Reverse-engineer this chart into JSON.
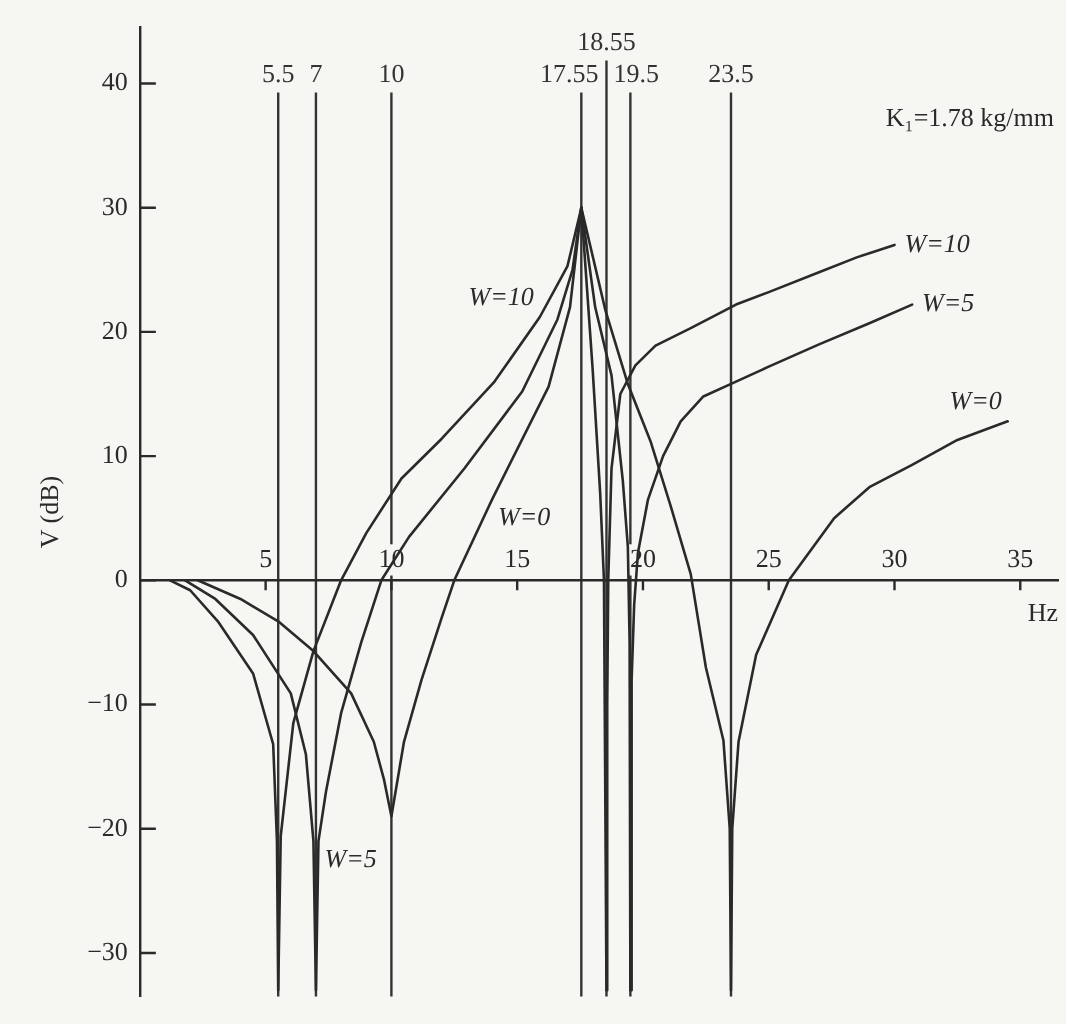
{
  "chart_data": {
    "type": "line",
    "xlabel": "Hz",
    "ylabel": "V (dB)",
    "annotations": [
      "K₁=1.78 kg/mm"
    ],
    "xlim": [
      0,
      36.5
    ],
    "xticks": [
      5,
      10,
      15,
      20,
      25,
      30,
      35
    ],
    "ylim": [
      -33.5,
      44.5
    ],
    "yticks": [
      {
        "value": -30,
        "label": "−30"
      },
      {
        "value": -20,
        "label": "−20"
      },
      {
        "value": -10,
        "label": "−10"
      },
      0,
      10,
      20,
      30,
      40
    ],
    "grid": false,
    "legend": false,
    "marker": "none",
    "line_style": "solid",
    "ref_lines": [
      {
        "axis": "x",
        "value": 5.5,
        "label": "5.5",
        "color": "#333333"
      },
      {
        "axis": "x",
        "value": 7,
        "label": "7",
        "color": "#333333"
      },
      {
        "axis": "x",
        "value": 10,
        "label": "10",
        "color": "#333333"
      },
      {
        "axis": "x",
        "value": 17.55,
        "label": "17.55",
        "color": "#333333"
      },
      {
        "axis": "x",
        "value": 18.55,
        "label": "18.55",
        "color": "#333333"
      },
      {
        "axis": "x",
        "value": 19.5,
        "label": "19.5",
        "color": "#333333"
      },
      {
        "axis": "x",
        "value": 23.5,
        "label": "23.5",
        "color": "#333333"
      }
    ],
    "series": [
      {
        "name": "W=10",
        "color": "#2a2a2a",
        "x": [
          1.2,
          2,
          3.1,
          4.5,
          5.3,
          5.45,
          5.5,
          5.6,
          6.1,
          6.9,
          8,
          9,
          10.4,
          12,
          14.1,
          15.9,
          17,
          17.55
        ],
        "values": [
          0,
          -0.8,
          -3.3,
          -7.5,
          -13.2,
          -21,
          -33,
          -20.6,
          -11.5,
          -5.7,
          0,
          3.8,
          8.2,
          11.4,
          16,
          21.2,
          25.3,
          30
        ]
      },
      {
        "name": "W=5",
        "color": "#2a2a2a",
        "x": [
          1.8,
          3,
          4.5,
          6,
          6.6,
          6.9,
          7,
          7.1,
          7.4,
          8,
          8.8,
          9.6,
          10.7,
          12.9,
          15.2,
          16.6,
          17.2,
          17.55
        ],
        "values": [
          0,
          -1.5,
          -4.4,
          -9.1,
          -14,
          -21,
          -33,
          -21,
          -17,
          -10.7,
          -5,
          0,
          3.5,
          9,
          15.2,
          21,
          25,
          30
        ]
      },
      {
        "name": "W=0",
        "color": "#2a2a2a",
        "x": [
          2.3,
          4,
          5.5,
          6.9,
          8.4,
          9.3,
          9.7,
          10,
          10.5,
          11.2,
          12,
          12.5,
          14,
          16.25,
          17.1,
          17.55
        ],
        "values": [
          0,
          -1.5,
          -3.3,
          -5.7,
          -9.1,
          -13,
          -16,
          -19,
          -13,
          -8,
          -3,
          0,
          6.5,
          15.6,
          22,
          30
        ]
      },
      {
        "name": "W=10",
        "color": "#2a2a2a",
        "x": [
          17.55,
          18,
          18.3,
          18.45,
          18.55,
          18.58,
          18.62,
          18.75,
          19.1,
          19.7,
          20.5,
          21.9,
          23.7,
          25,
          27,
          28.5,
          30
        ],
        "values": [
          30,
          17,
          7,
          0,
          -33,
          -10,
          0,
          9,
          15,
          17.3,
          18.9,
          20.3,
          22.2,
          23.2,
          24.8,
          26,
          27
        ]
      },
      {
        "name": "W=5",
        "color": "#2a2a2a",
        "x": [
          17.55,
          18.1,
          18.75,
          19.2,
          19.4,
          19.47,
          19.5,
          19.55,
          19.65,
          19.8,
          20.2,
          20.8,
          21.5,
          22.4,
          23.7,
          25,
          27,
          29,
          30.7
        ],
        "values": [
          30,
          22,
          16.5,
          8,
          2.7,
          -5,
          -33,
          -8,
          -2,
          2.2,
          6.5,
          10,
          12.8,
          14.8,
          16,
          17.2,
          19,
          20.7,
          22.2
        ]
      },
      {
        "name": "W=0",
        "color": "#2a2a2a",
        "x": [
          17.55,
          18.5,
          19.4,
          20.3,
          21.1,
          21.9,
          22.5,
          23.2,
          23.45,
          23.5,
          23.55,
          23.8,
          24.5,
          25.8,
          27.6,
          29,
          30.7,
          32.5,
          34.5
        ],
        "values": [
          30,
          21.8,
          15.8,
          11.2,
          6,
          0.5,
          -7,
          -12.9,
          -20,
          -33,
          -20,
          -13,
          -6,
          0,
          5,
          7.5,
          9.3,
          11.3,
          12.8
        ]
      }
    ]
  }
}
